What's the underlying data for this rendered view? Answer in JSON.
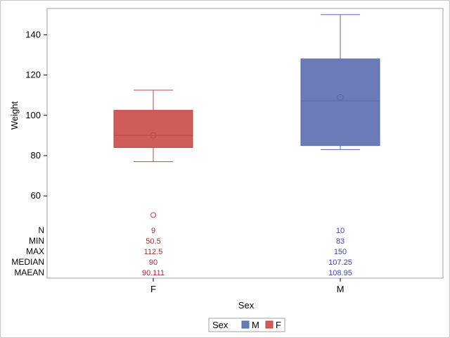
{
  "chart_data": {
    "type": "box",
    "xlabel": "Sex",
    "ylabel": "Weight",
    "categories": [
      "F",
      "M"
    ],
    "ylim": [
      40,
      155
    ],
    "yticks": [
      "60",
      "80",
      "100",
      "120",
      "140"
    ],
    "series": [
      {
        "name": "F",
        "color": "#d05b5b",
        "whisker_low": 77,
        "q1": 84,
        "median": 90,
        "q3": 102.5,
        "whisker_high": 112.5,
        "mean": 90.111,
        "outliers": [
          50.5
        ]
      },
      {
        "name": "M",
        "color": "#6b7bb8",
        "whisker_low": 83,
        "q1": 85,
        "median": 107.25,
        "q3": 128,
        "whisker_high": 150,
        "mean": 108.95,
        "outliers": []
      }
    ],
    "stats_table": {
      "row_labels": [
        "N",
        "MIN",
        "MAX",
        "MEDIAN",
        "MAEAN"
      ],
      "F": [
        "9",
        "50.5",
        "112.5",
        "90",
        "90.111"
      ],
      "M": [
        "10",
        "83",
        "150",
        "107.25",
        "108.95"
      ]
    },
    "legend": {
      "title": "Sex",
      "entries": [
        "M",
        "F"
      ],
      "placement": "bottom-center"
    }
  }
}
